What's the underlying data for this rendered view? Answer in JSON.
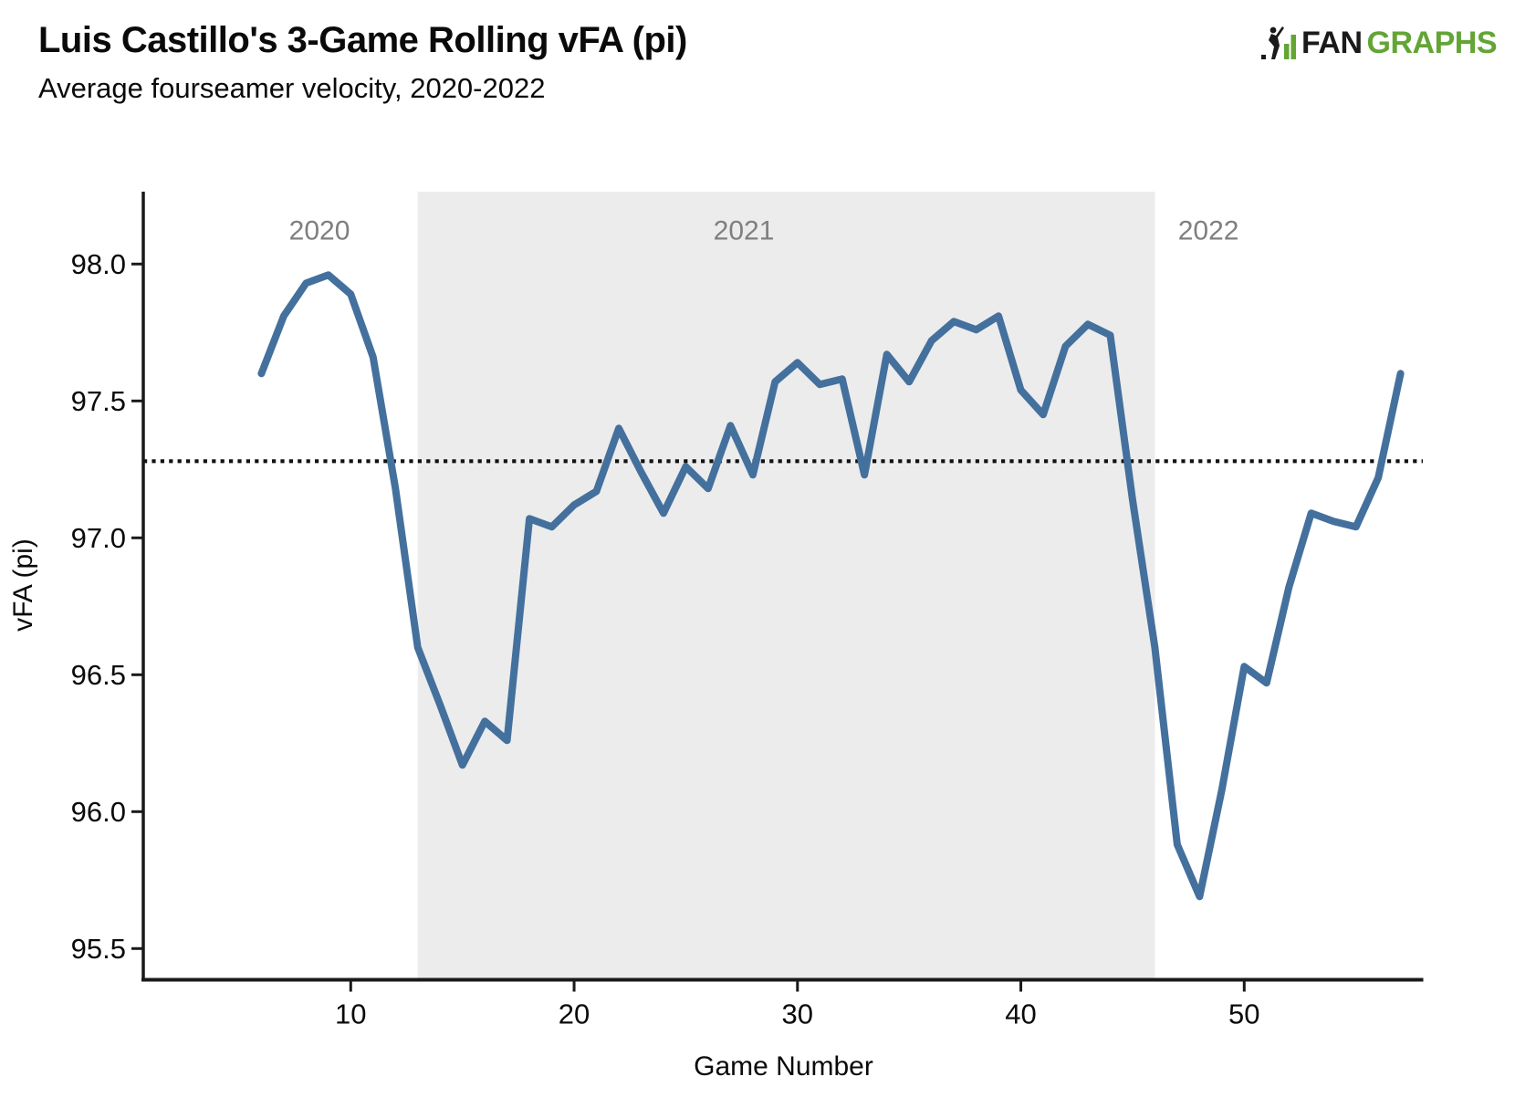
{
  "header": {
    "title": "Luis Castillo's 3-Game Rolling vFA (pi)",
    "subtitle": "Average fourseamer velocity, 2020-2022"
  },
  "logo": {
    "fan": "FAN",
    "graphs": "GRAPHS",
    "black": "#1a1a1a",
    "green": "#63a535"
  },
  "chart_data": {
    "type": "line",
    "title": "Luis Castillo's 3-Game Rolling vFA (pi)",
    "subtitle": "Average fourseamer velocity, 2020-2022",
    "xlabel": "Game Number",
    "ylabel": "vFA (pi)",
    "x_ticks": [
      10,
      20,
      30,
      40,
      50
    ],
    "y_ticks": [
      95.5,
      96.0,
      96.5,
      97.0,
      97.5,
      98.0
    ],
    "x_domain": [
      0.7,
      58.0
    ],
    "y_domain": [
      95.39,
      98.26
    ],
    "grid": false,
    "legend": false,
    "mean_line": 97.28,
    "line_color": "#44709d",
    "mean_line_color": "#111111",
    "band": {
      "season": "2021",
      "start_game": 13,
      "end_game": 46,
      "color": "#ececec"
    },
    "season_labels": [
      {
        "label": "2020",
        "x_game": 8.6
      },
      {
        "label": "2021",
        "x_game": 27.6
      },
      {
        "label": "2022",
        "x_game": 48.4
      }
    ],
    "season_label_color": "#7f7f7f",
    "series": [
      {
        "name": "3-game rolling vFA (pi)",
        "x": [
          6,
          7,
          8,
          9,
          10,
          11,
          12,
          13,
          14,
          15,
          16,
          17,
          18,
          19,
          20,
          21,
          22,
          23,
          24,
          25,
          26,
          27,
          28,
          29,
          30,
          31,
          32,
          33,
          34,
          35,
          36,
          37,
          38,
          39,
          40,
          41,
          42,
          43,
          44,
          45,
          46,
          47,
          48,
          49,
          50,
          51,
          52,
          53,
          54,
          55,
          56,
          57
        ],
        "y": [
          97.6,
          97.81,
          97.93,
          97.96,
          97.89,
          97.66,
          97.18,
          96.6,
          96.39,
          96.17,
          96.33,
          96.26,
          97.07,
          97.04,
          97.12,
          97.17,
          97.4,
          97.24,
          97.09,
          97.26,
          97.18,
          97.41,
          97.23,
          97.57,
          97.64,
          97.56,
          97.58,
          97.23,
          97.67,
          97.57,
          97.72,
          97.79,
          97.76,
          97.81,
          97.54,
          97.45,
          97.7,
          97.78,
          97.74,
          97.14,
          96.6,
          95.88,
          95.69,
          96.08,
          96.53,
          96.47,
          96.82,
          97.09,
          97.06,
          97.04,
          97.22,
          97.6
        ]
      }
    ]
  }
}
